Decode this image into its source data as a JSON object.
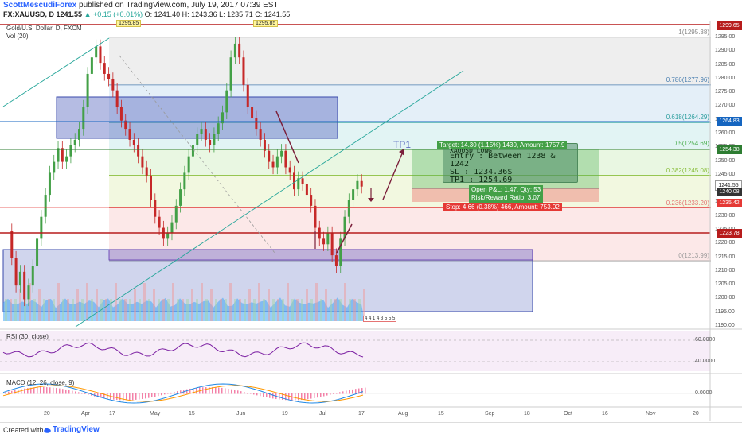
{
  "header": {
    "author": "ScottMescudiForex",
    "published": "published on TradingView.com, July 19, 2017 07:39 EST",
    "symbol": "FX:XAUUSD, D",
    "last": "1241.55",
    "change": "+0.15 (+0.01%)",
    "ohlc": "O: 1241.40 H: 1243.36 L: 1235.71 C: 1241.55"
  },
  "legend": {
    "title": "Gold/U.S. Dollar, D, FXCM",
    "volume": "Vol (20)"
  },
  "price_axis": {
    "ticks": [
      "1295.00",
      "1290.00",
      "1285.00",
      "1280.00",
      "1275.00",
      "1270.00",
      "1265.00",
      "1260.00",
      "1255.00",
      "1250.00",
      "1245.00",
      "1240.00",
      "1235.00",
      "1230.00",
      "1225.00",
      "1220.00",
      "1215.00",
      "1210.00",
      "1205.00",
      "1200.00",
      "1195.00",
      "1190.00"
    ],
    "labels": [
      {
        "value": "1299.65",
        "color": "#b71c1c"
      },
      {
        "value": "1264.83",
        "color": "#1565c0"
      },
      {
        "value": "1254.38",
        "color": "#2e7d32"
      },
      {
        "value": "1241.55",
        "color": "#ffffff"
      },
      {
        "value": "1240.08",
        "color": "#333333"
      },
      {
        "value": "1235.42",
        "color": "#e53935"
      },
      {
        "value": "1223.78",
        "color": "#b71c1c"
      }
    ]
  },
  "fib_levels": [
    {
      "label": "1(1295.38)",
      "price": 1295.38,
      "fill": "#e8e8e8",
      "text": "#888888"
    },
    {
      "label": "0.786(1277.96)",
      "price": 1277.96,
      "fill": "#dbe9f6",
      "text": "#4a7fb0"
    },
    {
      "label": "0.618(1264.29)",
      "price": 1264.29,
      "fill": "#d8f0f0",
      "text": "#2a9d9d"
    },
    {
      "label": "0.5(1254.69)",
      "price": 1254.69,
      "fill": "#e1f4d8",
      "text": "#4caf50"
    },
    {
      "label": "0.382(1245.08)",
      "price": 1245.08,
      "fill": "#eef6d6",
      "text": "#8bbf3e"
    },
    {
      "label": "0.236(1233.20)",
      "price": 1233.2,
      "fill": "#fbe0e0",
      "text": "#e57373"
    },
    {
      "label": "0(1213.99)",
      "price": 1213.99,
      "fill": "#f6e3e3",
      "text": "#999999"
    }
  ],
  "annotations": {
    "tp1": "TP1",
    "high_marker_1": "1295.85",
    "high_marker_2": "1295.85",
    "idea_lines": [
      "XAUUSD LONG",
      "Entry : Between 1238 & 1242",
      "SL : 1234.36$",
      "TP1 : 1254.69"
    ],
    "target": "Target: 14.30 (1.15%) 1430, Amount: 1757.9",
    "open_pnl": "Open P&L: 1.47, Qty: 53",
    "risk_reward": "Risk/Reward Ratio: 3.07",
    "stop": "Stop: 4.66 (0.38%) 466, Amount: 753.02",
    "event_digits": "4 4 1 4 3 5 5 5"
  },
  "rsi": {
    "label": "RSI (30, close)",
    "ticks": [
      "60.0000",
      "40.0000"
    ]
  },
  "macd": {
    "label": "MACD (12, 26, close, 9)",
    "ticks": [
      "0.0000"
    ]
  },
  "time_axis": [
    "20",
    "Apr",
    "17",
    "May",
    "15",
    "Jun",
    "19",
    "Jul",
    "17",
    "Aug",
    "15",
    "Sep",
    "18",
    "Oct",
    "16",
    "Nov",
    "20"
  ],
  "footer": {
    "created_with": "Created with",
    "brand": "TradingView"
  },
  "colors": {
    "up": "#26a69a",
    "down": "#ef5350",
    "candle_up": "#43a047",
    "candle_down": "#c62828"
  }
}
